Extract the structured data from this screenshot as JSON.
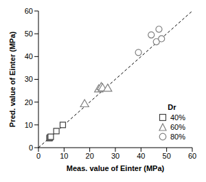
{
  "chart_data": {
    "type": "scatter",
    "x_label": "Meas. value of Einter (MPa)",
    "y_label": "Pred. value of Einter (MPa)",
    "xlim": [
      0,
      60
    ],
    "ylim": [
      0,
      60
    ],
    "xticks": [
      0,
      10,
      20,
      30,
      40,
      50,
      60
    ],
    "yticks": [
      0,
      10,
      20,
      30,
      40,
      50,
      60
    ],
    "grid": false,
    "legend": "lower right",
    "legend_title": "Dr",
    "series": [
      {
        "name": "40%",
        "color": "#404040",
        "marker": "square",
        "x": [
          4.3,
          4.5,
          4.8,
          7.0,
          9.5
        ],
        "values": [
          4.2,
          4.5,
          4.8,
          7.3,
          10.0
        ]
      },
      {
        "name": "60%",
        "color": "#808080",
        "marker": "triangle",
        "x": [
          18.0,
          23.5,
          24.5,
          25.0,
          27.0
        ],
        "values": [
          19.0,
          25.5,
          26.5,
          26.0,
          25.8
        ]
      },
      {
        "name": "80%",
        "color": "#808080",
        "marker": "circle",
        "x": [
          39.0,
          44.0,
          46.0,
          47.0,
          48.0
        ],
        "values": [
          41.8,
          49.5,
          46.5,
          52.0,
          47.8
        ]
      }
    ],
    "reference_line": {
      "x": [
        0,
        60
      ],
      "y": [
        0,
        60
      ],
      "line_style": "dashed"
    }
  }
}
